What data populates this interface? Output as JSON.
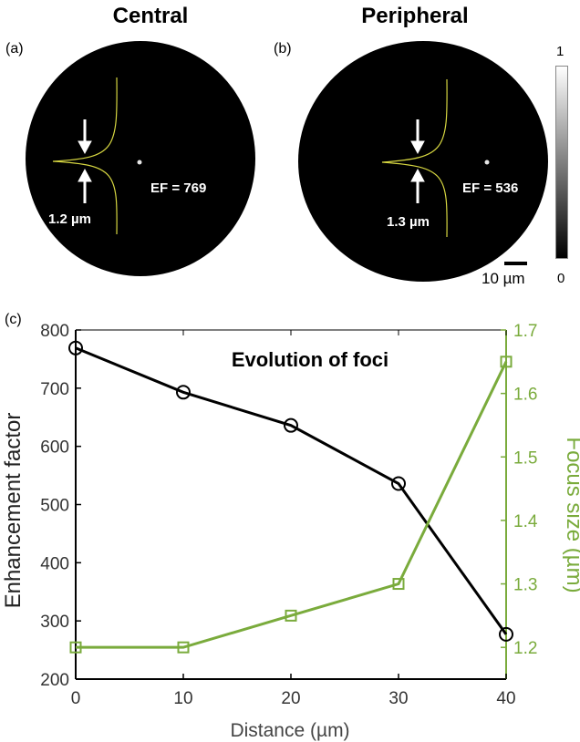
{
  "panels": [
    {
      "tag": "(a)",
      "title": "Central",
      "ef_label": "EF = 769",
      "size_label": "1.2 µm"
    },
    {
      "tag": "(b)",
      "title": "Peripheral",
      "ef_label": "EF = 536",
      "size_label": "1.3 µm"
    }
  ],
  "colorbar": {
    "max_label": "1",
    "min_label": "0"
  },
  "scalebar": {
    "label": "10 µm"
  },
  "colors": {
    "black_series": "#000000",
    "green_series": "#7aab3c",
    "profile": "#d6d641"
  },
  "chart_data": {
    "tag": "(c)",
    "type": "line",
    "title": "Evolution of foci",
    "xlabel": "Distance (µm)",
    "ylabel_left": "Enhancement factor",
    "ylabel_right": "Focus size (µm)",
    "x": [
      0,
      10,
      20,
      30,
      40
    ],
    "xlim": [
      0,
      40
    ],
    "xticks": [
      "0",
      "10",
      "20",
      "30",
      "40"
    ],
    "ylim_left": [
      200,
      800
    ],
    "yticks_left": [
      "200",
      "300",
      "400",
      "500",
      "600",
      "700",
      "800"
    ],
    "ylim_right": [
      1.15,
      1.7
    ],
    "yticks_right": [
      "1.2",
      "1.3",
      "1.4",
      "1.5",
      "1.6",
      "1.7"
    ],
    "series": [
      {
        "axis": "left",
        "marker": "circle",
        "color": "#000000",
        "values": [
          769,
          693,
          636,
          536,
          277
        ]
      },
      {
        "axis": "right",
        "marker": "square",
        "color": "#7aab3c",
        "values": [
          1.2,
          1.2,
          1.25,
          1.3,
          1.65
        ]
      }
    ]
  }
}
